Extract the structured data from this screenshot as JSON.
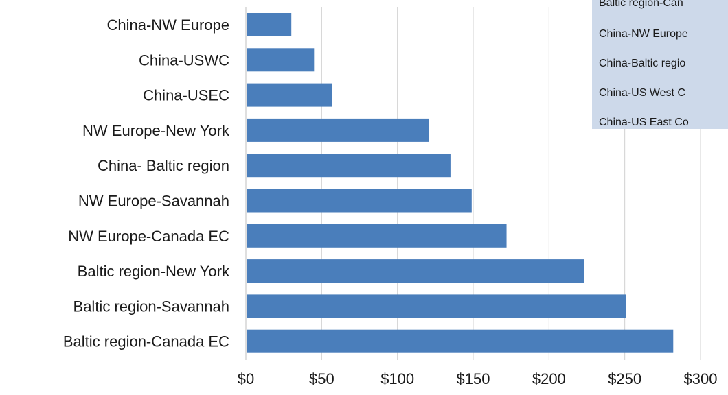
{
  "chart_data": {
    "type": "bar",
    "orientation": "horizontal",
    "categories": [
      "China-NW Europe",
      "China-USWC",
      "China-USEC",
      "NW Europe-New York",
      "China- Baltic region",
      "NW Europe-Savannah",
      "NW Europe-Canada EC",
      "Baltic region-New York",
      "Baltic region-Savannah",
      "Baltic region-Canada EC"
    ],
    "values": [
      30,
      45,
      57,
      121,
      135,
      149,
      172,
      223,
      251,
      282
    ],
    "xlim": [
      0,
      300
    ],
    "x_ticks": [
      0,
      50,
      100,
      150,
      200,
      250,
      300
    ],
    "x_tick_labels": [
      "$0",
      "$50",
      "$100",
      "$150",
      "$200",
      "$250",
      "$300"
    ],
    "title": "",
    "xlabel": "",
    "ylabel": "",
    "grid": "vertical",
    "bar_color": "#4a7ebb",
    "legend": {
      "placement": "top-right",
      "background": "#cdd9ea",
      "entries": [
        "Baltic region-Can",
        "China-NW Europe",
        "China-Baltic regio",
        "China-US West C",
        "China-US East Co"
      ]
    }
  }
}
